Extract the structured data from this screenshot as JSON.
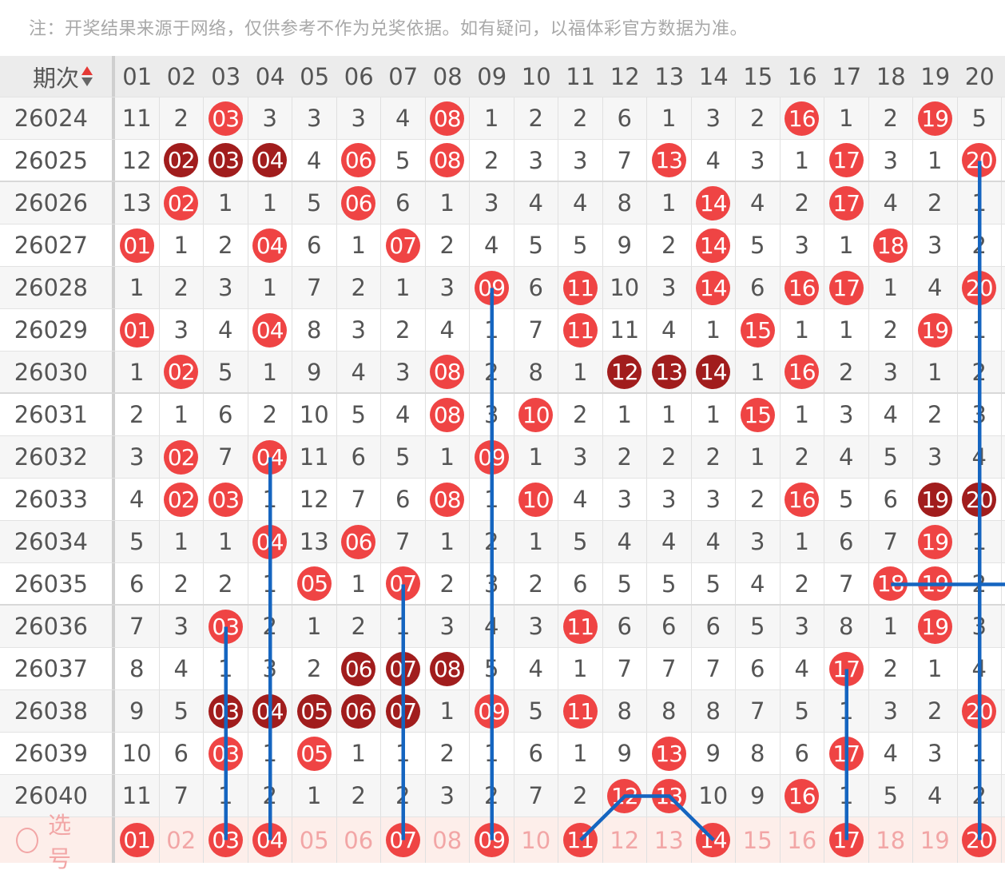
{
  "note": "注：开奖结果来源于网络，仅供参考不作为兑奖依据。如有疑问，以福体彩官方数据为准。",
  "header": {
    "period_label": "期次",
    "sort_icon": "sort-up-down-icon",
    "columns": [
      "01",
      "02",
      "03",
      "04",
      "05",
      "06",
      "07",
      "08",
      "09",
      "10",
      "11",
      "12",
      "13",
      "14",
      "15",
      "16",
      "17",
      "18",
      "19",
      "20"
    ]
  },
  "colors": {
    "ball": "#ef4444",
    "ball_repeat": "#a11d1d",
    "trend_line": "#1565c0",
    "select_text": "#f2a6a6"
  },
  "rows": [
    {
      "period": "26024",
      "cells": [
        "11",
        "2",
        "03",
        "3",
        "3",
        "3",
        "4",
        "08",
        "1",
        "2",
        "2",
        "6",
        "1",
        "3",
        "2",
        "16",
        "1",
        "2",
        "19",
        "5"
      ],
      "balls": [
        3,
        8,
        16,
        19
      ],
      "dark": []
    },
    {
      "period": "26025",
      "cells": [
        "12",
        "02",
        "03",
        "04",
        "4",
        "06",
        "5",
        "08",
        "2",
        "3",
        "3",
        "7",
        "13",
        "4",
        "3",
        "1",
        "17",
        "3",
        "1",
        "20"
      ],
      "balls": [
        2,
        3,
        4,
        6,
        8,
        13,
        17,
        20
      ],
      "dark": [
        2,
        3,
        4
      ]
    },
    {
      "period": "26026",
      "cells": [
        "13",
        "02",
        "1",
        "1",
        "5",
        "06",
        "6",
        "1",
        "3",
        "4",
        "4",
        "8",
        "1",
        "14",
        "4",
        "2",
        "17",
        "4",
        "2",
        "1"
      ],
      "balls": [
        2,
        6,
        14,
        17
      ],
      "dark": []
    },
    {
      "period": "26027",
      "cells": [
        "01",
        "1",
        "2",
        "04",
        "6",
        "1",
        "07",
        "2",
        "4",
        "5",
        "5",
        "9",
        "2",
        "14",
        "5",
        "3",
        "1",
        "18",
        "3",
        "2"
      ],
      "balls": [
        1,
        4,
        7,
        14,
        18
      ],
      "dark": []
    },
    {
      "period": "26028",
      "cells": [
        "1",
        "2",
        "3",
        "1",
        "7",
        "2",
        "1",
        "3",
        "09",
        "6",
        "11",
        "10",
        "3",
        "14",
        "6",
        "16",
        "17",
        "1",
        "4",
        "20"
      ],
      "balls": [
        9,
        11,
        14,
        16,
        17,
        20
      ],
      "dark": []
    },
    {
      "period": "26029",
      "cells": [
        "01",
        "3",
        "4",
        "04",
        "8",
        "3",
        "2",
        "4",
        "1",
        "7",
        "11",
        "11",
        "4",
        "1",
        "15",
        "1",
        "1",
        "2",
        "19",
        "1"
      ],
      "balls": [
        1,
        4,
        11,
        15,
        19
      ],
      "dark": []
    },
    {
      "period": "26030",
      "cells": [
        "1",
        "02",
        "5",
        "1",
        "9",
        "4",
        "3",
        "08",
        "2",
        "8",
        "1",
        "12",
        "13",
        "14",
        "1",
        "16",
        "2",
        "3",
        "1",
        "2"
      ],
      "balls": [
        2,
        8,
        12,
        13,
        14,
        16
      ],
      "dark": [
        12,
        13,
        14
      ]
    },
    {
      "period": "26031",
      "cells": [
        "2",
        "1",
        "6",
        "2",
        "10",
        "5",
        "4",
        "08",
        "3",
        "10",
        "2",
        "1",
        "1",
        "1",
        "15",
        "1",
        "3",
        "4",
        "2",
        "3"
      ],
      "balls": [
        8,
        10,
        15
      ],
      "dark": []
    },
    {
      "period": "26032",
      "cells": [
        "3",
        "02",
        "7",
        "04",
        "11",
        "6",
        "5",
        "1",
        "09",
        "1",
        "3",
        "2",
        "2",
        "2",
        "1",
        "2",
        "4",
        "5",
        "3",
        "4"
      ],
      "balls": [
        2,
        4,
        9
      ],
      "dark": []
    },
    {
      "period": "26033",
      "cells": [
        "4",
        "02",
        "03",
        "1",
        "12",
        "7",
        "6",
        "08",
        "1",
        "10",
        "4",
        "3",
        "3",
        "3",
        "2",
        "16",
        "5",
        "6",
        "19",
        "20"
      ],
      "balls": [
        2,
        3,
        8,
        10,
        16,
        19,
        20
      ],
      "dark": [
        19,
        20
      ]
    },
    {
      "period": "26034",
      "cells": [
        "5",
        "1",
        "1",
        "04",
        "13",
        "06",
        "7",
        "1",
        "2",
        "1",
        "5",
        "4",
        "4",
        "4",
        "3",
        "1",
        "6",
        "7",
        "19",
        "1"
      ],
      "balls": [
        4,
        6,
        19
      ],
      "dark": []
    },
    {
      "period": "26035",
      "cells": [
        "6",
        "2",
        "2",
        "1",
        "05",
        "1",
        "07",
        "2",
        "3",
        "2",
        "6",
        "5",
        "5",
        "5",
        "4",
        "2",
        "7",
        "18",
        "19",
        "2"
      ],
      "balls": [
        5,
        7,
        18,
        19
      ],
      "dark": []
    },
    {
      "period": "26036",
      "cells": [
        "7",
        "3",
        "03",
        "2",
        "1",
        "2",
        "1",
        "3",
        "4",
        "3",
        "11",
        "6",
        "6",
        "6",
        "5",
        "3",
        "8",
        "1",
        "19",
        "3"
      ],
      "balls": [
        3,
        11,
        19
      ],
      "dark": []
    },
    {
      "period": "26037",
      "cells": [
        "8",
        "4",
        "1",
        "3",
        "2",
        "06",
        "07",
        "08",
        "5",
        "4",
        "1",
        "7",
        "7",
        "7",
        "6",
        "4",
        "17",
        "2",
        "1",
        "4"
      ],
      "balls": [
        6,
        7,
        8,
        17
      ],
      "dark": [
        6,
        7,
        8
      ]
    },
    {
      "period": "26038",
      "cells": [
        "9",
        "5",
        "03",
        "04",
        "05",
        "06",
        "07",
        "1",
        "09",
        "5",
        "11",
        "8",
        "8",
        "8",
        "7",
        "5",
        "1",
        "3",
        "2",
        "20"
      ],
      "balls": [
        3,
        4,
        5,
        6,
        7,
        9,
        11,
        20
      ],
      "dark": [
        3,
        4,
        5,
        6,
        7
      ]
    },
    {
      "period": "26039",
      "cells": [
        "10",
        "6",
        "03",
        "1",
        "05",
        "1",
        "1",
        "2",
        "1",
        "6",
        "1",
        "9",
        "13",
        "9",
        "8",
        "6",
        "17",
        "4",
        "3",
        "1"
      ],
      "balls": [
        3,
        5,
        13,
        17
      ],
      "dark": []
    },
    {
      "period": "26040",
      "cells": [
        "11",
        "7",
        "1",
        "2",
        "1",
        "2",
        "2",
        "3",
        "2",
        "7",
        "2",
        "12",
        "13",
        "10",
        "9",
        "16",
        "1",
        "5",
        "4",
        "2"
      ],
      "balls": [
        12,
        13,
        16
      ],
      "dark": []
    }
  ],
  "select_row": {
    "label": "选号",
    "selected": [
      1,
      3,
      4,
      7,
      9,
      11,
      14,
      17,
      20
    ]
  },
  "trend_lines": [
    {
      "points": [
        [
          "26025",
          20
        ],
        [
          "select",
          20
        ]
      ]
    },
    {
      "points": [
        [
          "26028",
          9
        ],
        [
          "select",
          9
        ]
      ]
    },
    {
      "points": [
        [
          "26032",
          4
        ],
        [
          "select",
          4
        ]
      ]
    },
    {
      "points": [
        [
          "26035",
          7
        ],
        [
          "select",
          7
        ]
      ]
    },
    {
      "points": [
        [
          "26036",
          3
        ],
        [
          "select",
          3
        ]
      ]
    },
    {
      "points": [
        [
          "26037",
          17
        ],
        [
          "select",
          17
        ]
      ]
    },
    {
      "points": [
        [
          "26035",
          18
        ],
        [
          "26035",
          21
        ]
      ]
    },
    {
      "points": [
        [
          "select",
          11
        ],
        [
          "26040",
          12
        ],
        [
          "26040",
          13
        ],
        [
          "select",
          14
        ]
      ]
    }
  ]
}
